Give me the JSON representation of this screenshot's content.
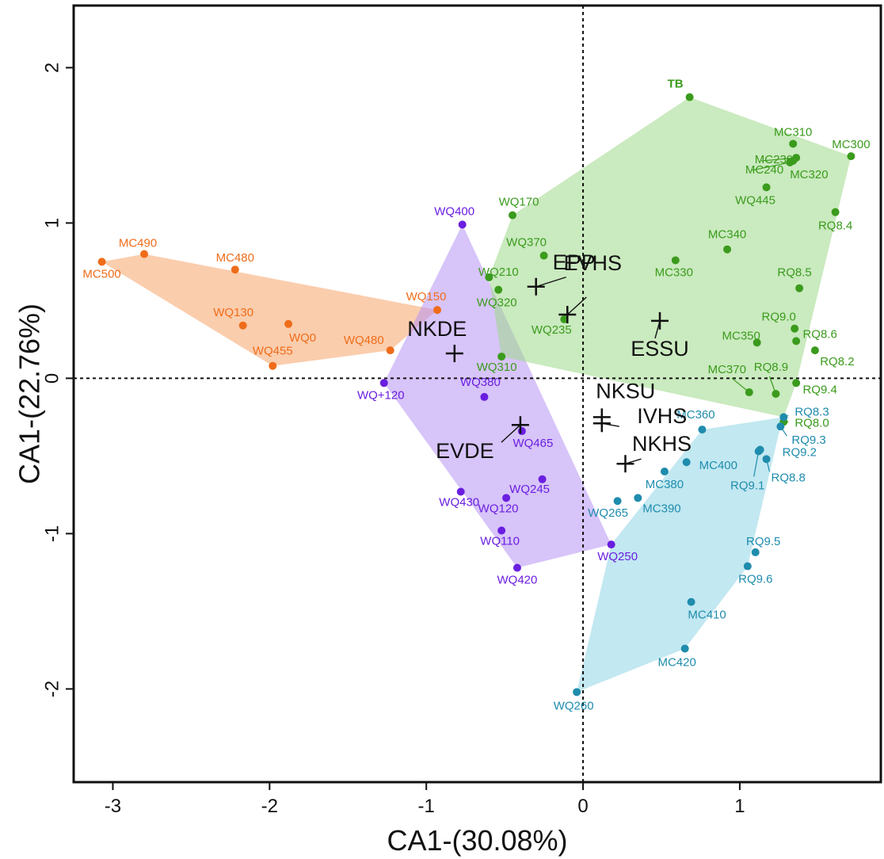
{
  "chart_data": {
    "type": "scatter",
    "title": "",
    "xlabel": "CA1-(30.08%)",
    "ylabel": "CA1-(22.76%)",
    "xlim": [
      -3.25,
      1.9
    ],
    "ylim": [
      -2.6,
      2.4
    ],
    "xticks": [
      -3,
      -2,
      -1,
      0,
      1
    ],
    "yticks": [
      -2,
      -1,
      0,
      1,
      2
    ],
    "grid": false,
    "reference_lines": [
      0,
      0
    ],
    "groups": [
      {
        "color": "#ef6c1a",
        "fill": "#f5a46a",
        "hull": [
          "MC500",
          "MC490",
          "WQ150",
          "WQ480",
          "WQ455"
        ],
        "points": [
          {
            "label": "MC490",
            "x": -2.8,
            "y": 0.8
          },
          {
            "label": "MC500",
            "x": -3.07,
            "y": 0.75
          },
          {
            "label": "MC480",
            "x": -2.22,
            "y": 0.7
          },
          {
            "label": "WQ130",
            "x": -2.17,
            "y": 0.34
          },
          {
            "label": "WQ0",
            "x": -1.88,
            "y": 0.35
          },
          {
            "label": "WQ455",
            "x": -1.98,
            "y": 0.08
          },
          {
            "label": "WQ150",
            "x": -0.93,
            "y": 0.44
          },
          {
            "label": "WQ480",
            "x": -1.23,
            "y": 0.18
          }
        ]
      },
      {
        "color": "#6a1ee0",
        "fill": "#b794f4",
        "hull": [
          "WQ400",
          "WQ250",
          "WQ420",
          "WQ+120"
        ],
        "points": [
          {
            "label": "WQ400",
            "x": -0.77,
            "y": 0.99
          },
          {
            "label": "WQ+120",
            "x": -1.27,
            "y": -0.03
          },
          {
            "label": "WQ380",
            "x": -0.63,
            "y": -0.12
          },
          {
            "label": "WQ465",
            "x": -0.39,
            "y": -0.34
          },
          {
            "label": "WQ245",
            "x": -0.26,
            "y": -0.65
          },
          {
            "label": "WQ430",
            "x": -0.78,
            "y": -0.73
          },
          {
            "label": "WQ120",
            "x": -0.49,
            "y": -0.77
          },
          {
            "label": "WQ110",
            "x": -0.52,
            "y": -0.98
          },
          {
            "label": "WQ420",
            "x": -0.42,
            "y": -1.22
          },
          {
            "label": "WQ250",
            "x": 0.18,
            "y": -1.07
          }
        ]
      },
      {
        "color": "#3a9b1c",
        "fill": "#9fd88a",
        "hull": [
          "TB",
          "MC300",
          "RQ9.4",
          "RQ8.3",
          "WQ310",
          "WQ210",
          "WQ170"
        ],
        "points": [
          {
            "label": "TB",
            "x": 0.68,
            "y": 1.81
          },
          {
            "label": "MC310",
            "x": 1.34,
            "y": 1.51
          },
          {
            "label": "MC300",
            "x": 1.71,
            "y": 1.43
          },
          {
            "label": "MC230",
            "x": 1.36,
            "y": 1.42
          },
          {
            "label": "MC240",
            "x": 1.32,
            "y": 1.39
          },
          {
            "label": "MC320",
            "x": 1.34,
            "y": 1.4
          },
          {
            "label": "WQ445",
            "x": 1.17,
            "y": 1.23
          },
          {
            "label": "RQ8.4",
            "x": 1.61,
            "y": 1.07
          },
          {
            "label": "WQ170",
            "x": -0.45,
            "y": 1.05
          },
          {
            "label": "WQ370",
            "x": -0.25,
            "y": 0.79
          },
          {
            "label": "MC340",
            "x": 0.92,
            "y": 0.83
          },
          {
            "label": "MC330",
            "x": 0.59,
            "y": 0.76
          },
          {
            "label": "WQ210",
            "x": -0.6,
            "y": 0.65
          },
          {
            "label": "WQ320",
            "x": -0.54,
            "y": 0.57
          },
          {
            "label": "RQ8.5",
            "x": 1.38,
            "y": 0.58
          },
          {
            "label": "WQ235",
            "x": -0.12,
            "y": 0.38
          },
          {
            "label": "RQ9.0",
            "x": 1.35,
            "y": 0.32
          },
          {
            "label": "MC350",
            "x": 1.11,
            "y": 0.23
          },
          {
            "label": "RQ8.6",
            "x": 1.36,
            "y": 0.24
          },
          {
            "label": "RQ8.2",
            "x": 1.48,
            "y": 0.18
          },
          {
            "label": "WQ310",
            "x": -0.52,
            "y": 0.14
          },
          {
            "label": "MC370",
            "x": 1.06,
            "y": -0.09
          },
          {
            "label": "RQ8.9",
            "x": 1.23,
            "y": -0.1
          },
          {
            "label": "RQ9.4",
            "x": 1.36,
            "y": -0.03
          },
          {
            "label": "RQ8.0",
            "x": 1.28,
            "y": -0.28
          }
        ]
      },
      {
        "color": "#1f8cad",
        "fill": "#8fd6e6",
        "hull": [
          "MC360",
          "RQ8.3",
          "RQ9.3",
          "RQ9.6",
          "MC420",
          "WQ260",
          "WQ250"
        ],
        "points": [
          {
            "label": "RQ8.3",
            "x": 1.28,
            "y": -0.25
          },
          {
            "label": "MC360",
            "x": 0.76,
            "y": -0.33
          },
          {
            "label": "RQ9.3",
            "x": 1.26,
            "y": -0.31
          },
          {
            "label": "RQ9.2",
            "x": 1.13,
            "y": -0.46
          },
          {
            "label": "RQ9.1",
            "x": 1.12,
            "y": -0.47
          },
          {
            "label": "RQ8.8",
            "x": 1.17,
            "y": -0.52
          },
          {
            "label": "MC400",
            "x": 0.66,
            "y": -0.54
          },
          {
            "label": "MC380",
            "x": 0.52,
            "y": -0.6
          },
          {
            "label": "MC390",
            "x": 0.35,
            "y": -0.77
          },
          {
            "label": "WQ265",
            "x": 0.22,
            "y": -0.79
          },
          {
            "label": "RQ9.5",
            "x": 1.1,
            "y": -1.12
          },
          {
            "label": "RQ9.6",
            "x": 1.05,
            "y": -1.21
          },
          {
            "label": "MC410",
            "x": 0.69,
            "y": -1.44
          },
          {
            "label": "MC420",
            "x": 0.65,
            "y": -1.74
          },
          {
            "label": "WQ260",
            "x": -0.04,
            "y": -2.02
          }
        ]
      }
    ],
    "centroids": [
      {
        "label": "EPP",
        "x": -0.3,
        "y": 0.59
      },
      {
        "label": "EVHS",
        "x": -0.1,
        "y": 0.41
      },
      {
        "label": "NKDE",
        "x": -0.82,
        "y": 0.16
      },
      {
        "label": "ESSU",
        "x": 0.49,
        "y": 0.37
      },
      {
        "label": "NKSU",
        "x": 0.12,
        "y": -0.25
      },
      {
        "label": "IVHS",
        "x": 0.12,
        "y": -0.29
      },
      {
        "label": "NKHS",
        "x": 0.27,
        "y": -0.55
      },
      {
        "label": "EVDE",
        "x": -0.4,
        "y": -0.3
      }
    ]
  }
}
